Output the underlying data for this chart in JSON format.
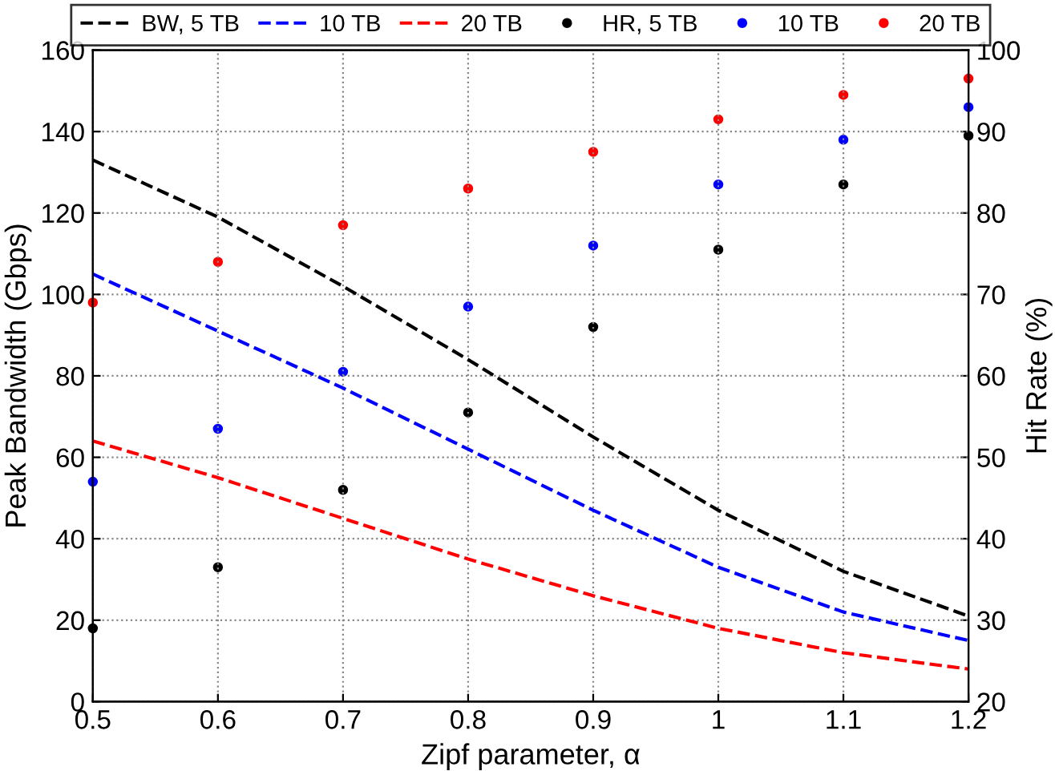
{
  "chart_data": {
    "type": "line",
    "xlabel": "Zipf parameter, α",
    "ylabel": "Peak Bandwidth (Gbps)",
    "y2label": "Hit Rate (%)",
    "x": [
      0.5,
      0.6,
      0.7,
      0.8,
      0.9,
      1.0,
      1.1,
      1.2
    ],
    "xlim": [
      0.5,
      1.2
    ],
    "xticks": [
      0.5,
      0.6,
      0.7,
      0.8,
      0.9,
      {
        "value": 1.0,
        "label": "1"
      },
      1.1,
      1.2
    ],
    "ylim": [
      0,
      160
    ],
    "yticks": [
      0,
      20,
      40,
      60,
      80,
      100,
      120,
      140,
      160
    ],
    "y2lim": [
      20,
      100
    ],
    "y2ticks": [
      20,
      30,
      40,
      50,
      60,
      70,
      80,
      90,
      100
    ],
    "grid": true,
    "legend": "top",
    "line_style": "dashed",
    "series": [
      {
        "name": "BW, 5 TB",
        "color": "#000000",
        "type": "line",
        "values": [
          133,
          119,
          102,
          84,
          65,
          47,
          32,
          21
        ]
      },
      {
        "name": "10 TB",
        "color": "#0000ff",
        "type": "line",
        "values": [
          105,
          91,
          77,
          62,
          47,
          33,
          22,
          15
        ]
      },
      {
        "name": "20 TB",
        "color": "#ff0000",
        "type": "line",
        "values": [
          64,
          55,
          45,
          35,
          26,
          18,
          12,
          8
        ]
      },
      {
        "name": "HR, 5 TB",
        "color": "#000000",
        "type": "scatter",
        "axis": "y2",
        "marker": "circle",
        "values": [
          29,
          36.5,
          46,
          55.5,
          66,
          75.5,
          83.5,
          89.5
        ]
      },
      {
        "name": "10 TB",
        "color": "#0000ff",
        "type": "scatter",
        "axis": "y2",
        "marker": "circle",
        "values": [
          47,
          53.5,
          60.5,
          68.5,
          76,
          83.5,
          89,
          93
        ]
      },
      {
        "name": "20 TB",
        "color": "#ff0000",
        "type": "scatter",
        "axis": "y2",
        "marker": "circle",
        "values": [
          69,
          74,
          78.5,
          83,
          87.5,
          91.5,
          94.5,
          96.5
        ]
      }
    ]
  }
}
